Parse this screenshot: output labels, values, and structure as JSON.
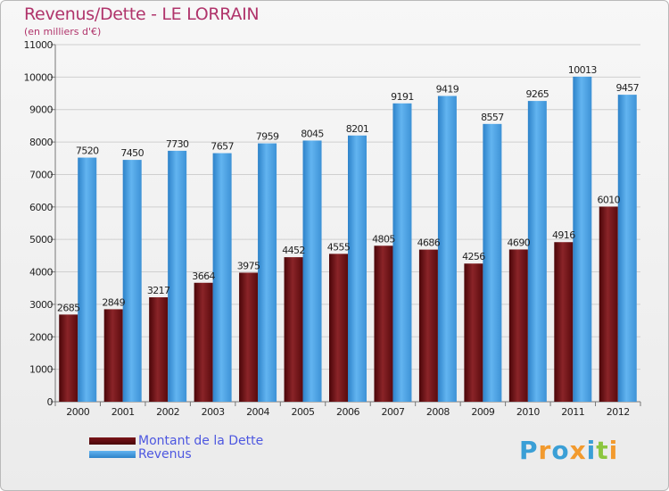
{
  "header": {
    "title": "Revenus/Dette - LE LORRAIN",
    "subtitle": "(en milliers d'€)"
  },
  "legend": {
    "items": [
      {
        "label": "Montant de la Dette",
        "color": "#6b0f14"
      },
      {
        "label": "Revenus",
        "color": "#4ea4e6"
      }
    ]
  },
  "logo": {
    "text": "Proxiti",
    "letters": [
      {
        "char": "P",
        "color": "#3a9fd6"
      },
      {
        "char": "r",
        "color": "#f29a2e"
      },
      {
        "char": "o",
        "color": "#3a9fd6"
      },
      {
        "char": "x",
        "color": "#f29a2e"
      },
      {
        "char": "i",
        "color": "#3a9fd6"
      },
      {
        "char": "t",
        "color": "#8cc63f"
      },
      {
        "char": "i",
        "color": "#f29a2e"
      }
    ]
  },
  "chart_data": {
    "type": "bar",
    "title": "Revenus/Dette - LE LORRAIN",
    "subtitle": "(en milliers d'€)",
    "categories": [
      "2000",
      "2001",
      "2002",
      "2003",
      "2004",
      "2005",
      "2006",
      "2007",
      "2008",
      "2009",
      "2010",
      "2011",
      "2012"
    ],
    "series": [
      {
        "name": "Montant de la Dette",
        "color": "#6b0f14",
        "values": [
          2685,
          2849,
          3217,
          3664,
          3975,
          4452,
          4555,
          4805,
          4686,
          4256,
          4690,
          4916,
          6010
        ]
      },
      {
        "name": "Revenus",
        "color": "#4ea4e6",
        "values": [
          7520,
          7450,
          7730,
          7657,
          7959,
          8045,
          8201,
          9191,
          9419,
          8557,
          9265,
          10013,
          9457
        ]
      }
    ],
    "yticks": [
      0,
      1000,
      2000,
      3000,
      4000,
      5000,
      6000,
      7000,
      8000,
      9000,
      10000,
      11000
    ],
    "ylim": [
      0,
      11000
    ],
    "grid": true,
    "legend_position": "bottom-left"
  }
}
